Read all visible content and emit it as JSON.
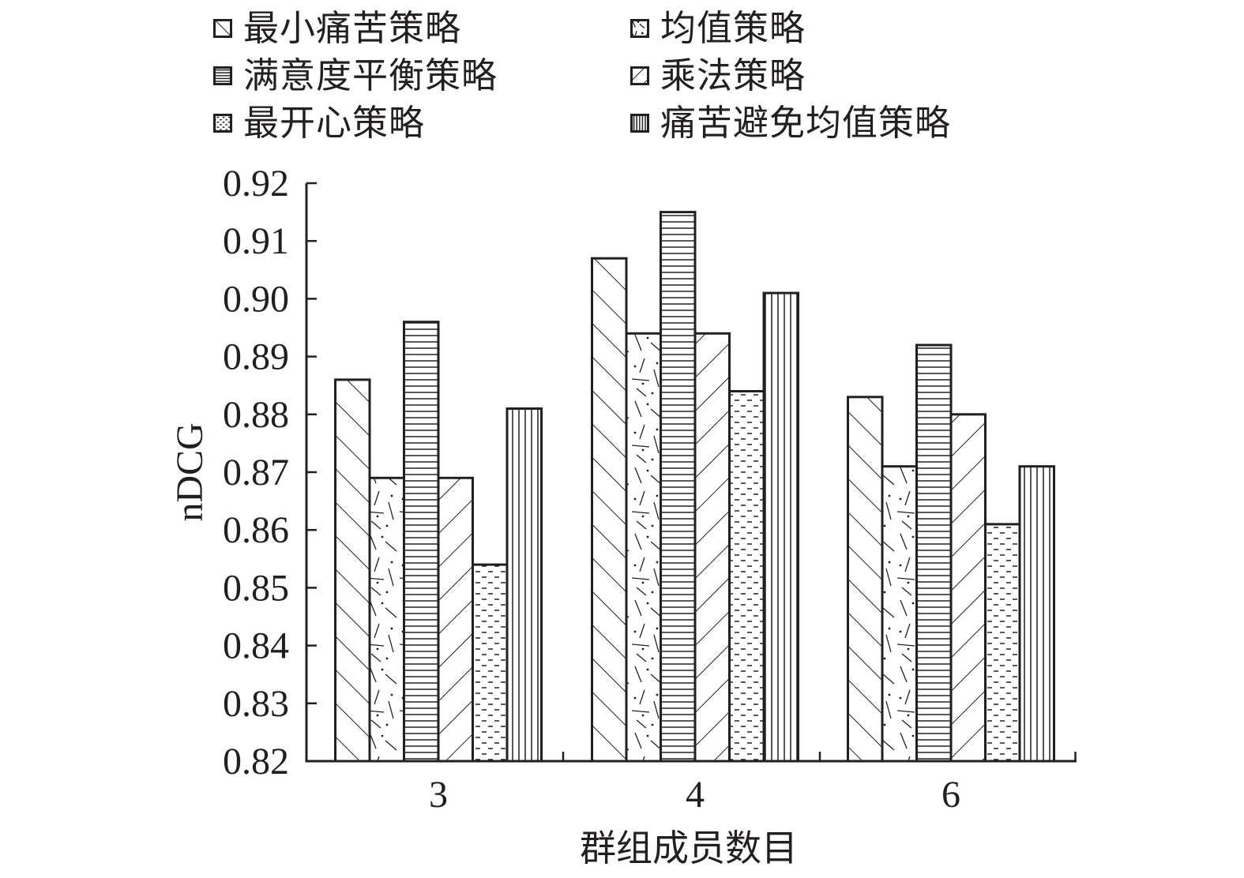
{
  "chart_data": {
    "type": "bar",
    "title": "",
    "xlabel": "群组成员数目",
    "ylabel": "nDCG",
    "categories": [
      "3",
      "4",
      "6"
    ],
    "ylim": [
      0.82,
      0.92
    ],
    "yticks": [
      "0.82",
      "0.83",
      "0.84",
      "0.85",
      "0.86",
      "0.87",
      "0.88",
      "0.89",
      "0.90",
      "0.91",
      "0.92"
    ],
    "legend_placement": "top",
    "grid": false,
    "series": [
      {
        "name": "最小痛苦策略",
        "pattern": "diagonal-forward",
        "values": [
          0.886,
          0.907,
          0.883
        ]
      },
      {
        "name": "均值策略",
        "pattern": "dash-dot-speckle",
        "values": [
          0.869,
          0.894,
          0.871
        ]
      },
      {
        "name": "满意度平衡策略",
        "pattern": "horizontal-lines",
        "values": [
          0.896,
          0.915,
          0.892
        ]
      },
      {
        "name": "乘法策略",
        "pattern": "diagonal-back",
        "values": [
          0.869,
          0.894,
          0.88
        ]
      },
      {
        "name": "最开心策略",
        "pattern": "short-dashes",
        "values": [
          0.854,
          0.884,
          0.861
        ]
      },
      {
        "name": "痛苦避免均值策略",
        "pattern": "vertical-lines",
        "values": [
          0.881,
          0.901,
          0.871
        ]
      }
    ],
    "colors": {
      "ink": "#231f20",
      "background": "#ffffff"
    }
  }
}
